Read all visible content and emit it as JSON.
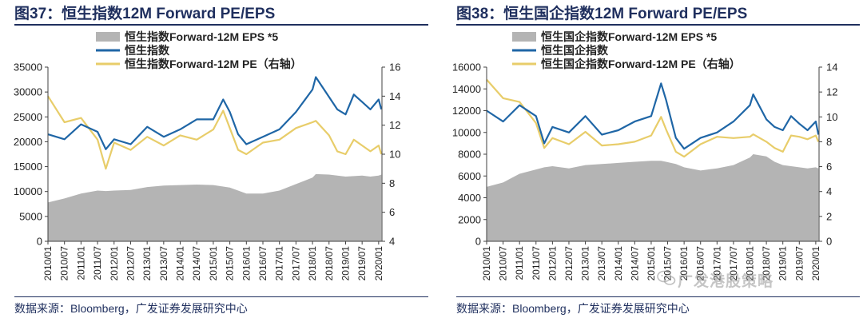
{
  "colors": {
    "eps": "#b4b4b4",
    "index": "#1f66a6",
    "pe": "#e8cd6a",
    "title": "#1f2f5e",
    "axis": "#404040"
  },
  "left": {
    "title": "图37：恒生指数12M Forward PE/EPS",
    "source": "数据来源：Bloomberg，广发证券发展研究中心"
  },
  "right": {
    "title": "图38：恒生国企指数12M Forward PE/EPS",
    "source": "数据来源：Bloomberg，广发证券发展研究中心"
  },
  "watermark": {
    "text": "广发港股策略",
    "icon": "wechat-icon"
  },
  "chart_data": [
    {
      "type": "area+line",
      "title": "图37：恒生指数12M Forward PE/EPS",
      "legend": [
        {
          "name": "恒生指数Forward-12M EPS *5",
          "kind": "area",
          "axis": "left"
        },
        {
          "name": "恒生指数",
          "kind": "line",
          "axis": "left"
        },
        {
          "name": "恒生指数Forward-12M PE（右轴）",
          "kind": "line",
          "axis": "right"
        }
      ],
      "x": [
        2010.0,
        2010.5,
        2011.0,
        2011.5,
        2011.75,
        2012.0,
        2012.5,
        2013.0,
        2013.5,
        2014.0,
        2014.5,
        2015.0,
        2015.3,
        2015.5,
        2015.75,
        2016.0,
        2016.5,
        2017.0,
        2017.5,
        2018.0,
        2018.1,
        2018.5,
        2018.75,
        2019.0,
        2019.25,
        2019.5,
        2019.75,
        2020.0,
        2020.08
      ],
      "xlim": [
        2010.0,
        2020.1
      ],
      "x_tick_labels": [
        "2010/01",
        "2010/07",
        "2011/01",
        "2011/07",
        "2012/01",
        "2012/07",
        "2013/01",
        "2013/07",
        "2014/01",
        "2014/07",
        "2015/01",
        "2015/07",
        "2016/01",
        "2016/07",
        "2017/01",
        "2017/07",
        "2018/01",
        "2018/07",
        "2019/01",
        "2019/07",
        "2020/01"
      ],
      "y_left_ticks": [
        0,
        5000,
        10000,
        15000,
        20000,
        25000,
        30000,
        35000
      ],
      "ylim_left": [
        0,
        35000
      ],
      "y_right_ticks": [
        4,
        6,
        8,
        10,
        12,
        14,
        16
      ],
      "ylim_right": [
        4,
        16
      ],
      "series": [
        {
          "name": "恒生指数Forward-12M EPS *5",
          "axis": "left",
          "values": [
            7800,
            8600,
            9600,
            10200,
            10100,
            10200,
            10300,
            10900,
            11200,
            11300,
            11400,
            11300,
            11000,
            10800,
            10200,
            9600,
            9600,
            10200,
            11500,
            12800,
            13500,
            13400,
            13200,
            13000,
            13100,
            13200,
            13000,
            13200,
            13400
          ]
        },
        {
          "name": "恒生指数",
          "axis": "left",
          "values": [
            21500,
            20500,
            23500,
            22000,
            18500,
            20500,
            19500,
            23000,
            21000,
            22500,
            24500,
            24500,
            28500,
            26000,
            21500,
            19500,
            21000,
            22500,
            26000,
            30500,
            33000,
            29000,
            26500,
            25500,
            29500,
            28000,
            26500,
            28500,
            26500
          ]
        },
        {
          "name": "恒生指数Forward-12M PE（右轴）",
          "axis": "right",
          "values": [
            14.0,
            12.2,
            12.5,
            11.0,
            9.0,
            10.8,
            10.3,
            11.2,
            10.6,
            11.3,
            11.0,
            11.7,
            13.0,
            11.8,
            10.3,
            10.0,
            10.8,
            11.0,
            11.8,
            12.2,
            12.3,
            11.3,
            10.2,
            10.0,
            11.0,
            10.6,
            10.2,
            10.6,
            10.0
          ]
        }
      ]
    },
    {
      "type": "area+line",
      "title": "图38：恒生国企指数12M Forward PE/EPS",
      "legend": [
        {
          "name": "恒生国企指数Forward-12M EPS *5",
          "kind": "area",
          "axis": "left"
        },
        {
          "name": "恒生国企指数",
          "kind": "line",
          "axis": "left"
        },
        {
          "name": "恒生国企指数Forward-12M PE（右轴）",
          "kind": "line",
          "axis": "right"
        }
      ],
      "x": [
        2010.0,
        2010.5,
        2011.0,
        2011.5,
        2011.75,
        2012.0,
        2012.5,
        2013.0,
        2013.5,
        2014.0,
        2014.5,
        2015.0,
        2015.3,
        2015.45,
        2015.75,
        2016.0,
        2016.5,
        2017.0,
        2017.5,
        2018.0,
        2018.1,
        2018.5,
        2018.75,
        2019.0,
        2019.25,
        2019.5,
        2019.75,
        2020.0,
        2020.08
      ],
      "xlim": [
        2010.0,
        2020.1
      ],
      "x_tick_labels": [
        "2010/01",
        "2010/07",
        "2011/01",
        "2011/07",
        "2012/01",
        "2012/07",
        "2013/01",
        "2013/07",
        "2014/01",
        "2014/07",
        "2015/01",
        "2015/07",
        "2016/01",
        "2016/07",
        "2017/01",
        "2017/07",
        "2018/01",
        "2018/07",
        "2019/01",
        "2019/07",
        "2020/01"
      ],
      "y_left_ticks": [
        0,
        2000,
        4000,
        6000,
        8000,
        10000,
        12000,
        14000,
        16000
      ],
      "ylim_left": [
        0,
        16000
      ],
      "y_right_ticks": [
        0,
        2,
        4,
        6,
        8,
        10,
        12,
        14
      ],
      "ylim_right": [
        0,
        14
      ],
      "series": [
        {
          "name": "恒生国企指数Forward-12M EPS *5",
          "axis": "left",
          "values": [
            5000,
            5400,
            6200,
            6600,
            6800,
            6900,
            6700,
            7000,
            7100,
            7200,
            7300,
            7400,
            7400,
            7300,
            7100,
            6800,
            6500,
            6700,
            7000,
            7700,
            8000,
            7800,
            7300,
            7000,
            6900,
            6800,
            6700,
            6800,
            6700
          ]
        },
        {
          "name": "恒生国企指数",
          "axis": "left",
          "values": [
            12000,
            11000,
            12500,
            11500,
            9000,
            10500,
            10000,
            11500,
            9800,
            10200,
            11000,
            11500,
            14500,
            13000,
            9500,
            8500,
            9500,
            10000,
            11000,
            12500,
            13500,
            11200,
            10500,
            10200,
            11500,
            10800,
            10200,
            11000,
            9800
          ]
        },
        {
          "name": "恒生国企指数Forward-12M PE（右轴）",
          "axis": "right",
          "values": [
            13.0,
            11.5,
            11.2,
            9.5,
            7.5,
            8.3,
            7.8,
            8.8,
            7.7,
            7.8,
            8.0,
            8.5,
            10.0,
            9.0,
            7.2,
            6.8,
            7.8,
            8.4,
            8.3,
            8.4,
            8.6,
            8.0,
            7.5,
            7.2,
            8.5,
            8.4,
            8.2,
            8.5,
            8.0
          ]
        }
      ]
    }
  ]
}
